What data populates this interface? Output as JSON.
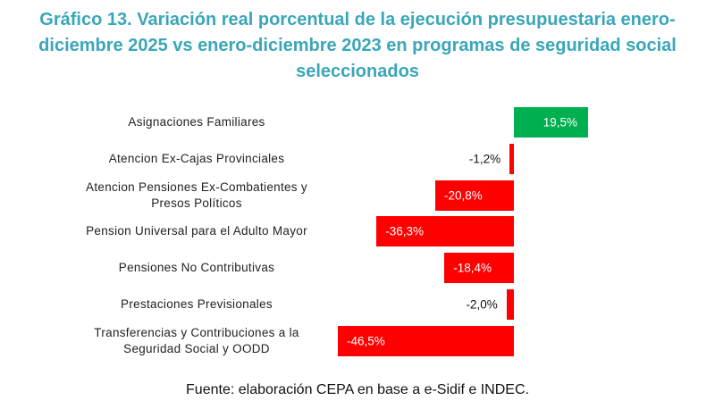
{
  "chart_data": {
    "type": "barh",
    "title": "Gráfico 13. Variación real porcentual de la ejecución presupuestaria enero-diciembre 2025 vs enero-diciembre 2023 en programas de seguridad social seleccionados",
    "categories": [
      "Asignaciones Familiares",
      "Atencion Ex-Cajas Provinciales",
      "Atencion Pensiones Ex-Combatientes y Presos Políticos",
      "Pension Universal para el Adulto Mayor",
      "Pensiones No Contributivas",
      "Prestaciones Previsionales",
      "Transferencias y Contribuciones a la Seguridad Social y OODD"
    ],
    "values": [
      19.5,
      -1.2,
      -20.8,
      -36.3,
      -18.4,
      -2.0,
      -46.5
    ],
    "value_labels": [
      "19,5%",
      "-1,2%",
      "-20,8%",
      "-36,3%",
      "-18,4%",
      "-2,0%",
      "-46,5%"
    ],
    "positive_color": "#00b050",
    "negative_color": "#ff0000",
    "source": "Fuente: elaboración CEPA en base a e-Sidif e INDEC."
  }
}
